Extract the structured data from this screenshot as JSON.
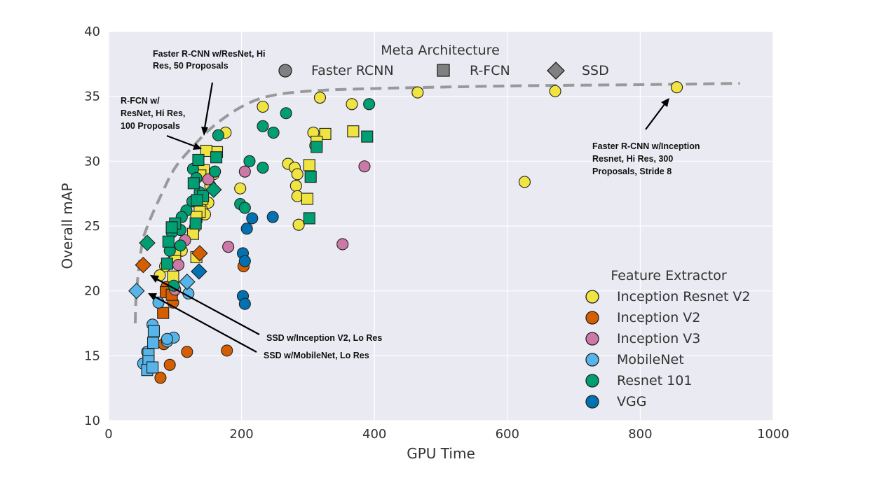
{
  "chart_data": {
    "type": "scatter",
    "xlabel": "GPU Time",
    "ylabel": "Overall mAP",
    "xlim": [
      0,
      1000
    ],
    "ylim": [
      10,
      40
    ],
    "x_ticks": [
      "0",
      "200",
      "400",
      "600",
      "800",
      "1000"
    ],
    "y_ticks": [
      "10",
      "15",
      "20",
      "25",
      "30",
      "35",
      "40"
    ],
    "grid": true,
    "meta_legend": {
      "title": "Meta Architecture",
      "placement": "top-center",
      "items": [
        {
          "label": "Faster RCNN",
          "marker": "circle"
        },
        {
          "label": "R-FCN",
          "marker": "square"
        },
        {
          "label": "SSD",
          "marker": "diamond"
        }
      ]
    },
    "feature_legend": {
      "title": "Feature Extractor",
      "placement": "right",
      "items": [
        {
          "label": "Inception Resnet V2",
          "color": "#f0e442"
        },
        {
          "label": "Inception V2",
          "color": "#d55e00"
        },
        {
          "label": "Inception V3",
          "color": "#cc79a7"
        },
        {
          "label": "MobileNet",
          "color": "#56b4e9"
        },
        {
          "label": "Resnet 101",
          "color": "#009e73"
        },
        {
          "label": "VGG",
          "color": "#0072b2"
        }
      ]
    },
    "frontier": [
      [
        40,
        17.5
      ],
      [
        42,
        20
      ],
      [
        50,
        23.5
      ],
      [
        60,
        25.2
      ],
      [
        80,
        27.5
      ],
      [
        100,
        29.5
      ],
      [
        130,
        31.3
      ],
      [
        160,
        32.8
      ],
      [
        200,
        34.2
      ],
      [
        240,
        35
      ],
      [
        300,
        35.4
      ],
      [
        400,
        35.6
      ],
      [
        600,
        35.8
      ],
      [
        800,
        35.9
      ],
      [
        950,
        36
      ]
    ],
    "annotations": [
      {
        "lines": [
          "Faster R-CNN w/ResNet, Hi",
          "Res, 50 Proposals"
        ],
        "target": [
          143,
          31.3
        ]
      },
      {
        "lines": [
          "R-FCN w/",
          "ResNet, Hi Res,",
          "100 Proposals"
        ],
        "target": [
          143,
          30.8
        ]
      },
      {
        "lines": [
          "SSD w/Inception V2, Lo Res"
        ],
        "target": [
          60,
          21.2
        ]
      },
      {
        "lines": [
          "SSD w/MobileNet, Lo Res"
        ],
        "target": [
          60,
          20.2
        ]
      },
      {
        "lines": [
          "Faster R-CNN w/Inception",
          "Resnet, Hi Res, 300",
          "Proposals, Stride 8"
        ],
        "target": [
          843,
          35.4
        ]
      }
    ],
    "series": [
      {
        "name": "Inception Resnet V2",
        "color": "#f0e442",
        "points": [
          {
            "x": 855,
            "y": 35.7,
            "m": "circle"
          },
          {
            "x": 672,
            "y": 35.4,
            "m": "circle"
          },
          {
            "x": 465,
            "y": 35.3,
            "m": "circle"
          },
          {
            "x": 626,
            "y": 28.4,
            "m": "circle"
          },
          {
            "x": 366,
            "y": 34.4,
            "m": "circle"
          },
          {
            "x": 318,
            "y": 34.9,
            "m": "circle"
          },
          {
            "x": 232,
            "y": 34.2,
            "m": "circle"
          },
          {
            "x": 176,
            "y": 32.2,
            "m": "circle"
          },
          {
            "x": 308,
            "y": 32.2,
            "m": "circle"
          },
          {
            "x": 311,
            "y": 31.2,
            "m": "circle"
          },
          {
            "x": 270,
            "y": 29.8,
            "m": "circle"
          },
          {
            "x": 280,
            "y": 29.5,
            "m": "circle"
          },
          {
            "x": 284,
            "y": 29.0,
            "m": "circle"
          },
          {
            "x": 282,
            "y": 28.1,
            "m": "circle"
          },
          {
            "x": 284,
            "y": 27.3,
            "m": "circle"
          },
          {
            "x": 198,
            "y": 27.9,
            "m": "circle"
          },
          {
            "x": 286,
            "y": 25.1,
            "m": "circle"
          },
          {
            "x": 158,
            "y": 29.0,
            "m": "circle"
          },
          {
            "x": 153,
            "y": 28.1,
            "m": "circle"
          },
          {
            "x": 150,
            "y": 26.8,
            "m": "circle"
          },
          {
            "x": 140,
            "y": 26.3,
            "m": "circle"
          },
          {
            "x": 145,
            "y": 25.9,
            "m": "circle"
          },
          {
            "x": 130,
            "y": 24.9,
            "m": "circle"
          },
          {
            "x": 110,
            "y": 23.1,
            "m": "circle"
          },
          {
            "x": 96,
            "y": 22.3,
            "m": "circle"
          },
          {
            "x": 85,
            "y": 21.9,
            "m": "circle"
          },
          {
            "x": 77,
            "y": 21.2,
            "m": "circle"
          },
          {
            "x": 368,
            "y": 32.3,
            "m": "square"
          },
          {
            "x": 326,
            "y": 32.1,
            "m": "square"
          },
          {
            "x": 313,
            "y": 31.5,
            "m": "square"
          },
          {
            "x": 302,
            "y": 29.7,
            "m": "square"
          },
          {
            "x": 299,
            "y": 27.1,
            "m": "square"
          },
          {
            "x": 163,
            "y": 30.7,
            "m": "square"
          },
          {
            "x": 147,
            "y": 30.8,
            "m": "square"
          },
          {
            "x": 143,
            "y": 29.3,
            "m": "square"
          },
          {
            "x": 138,
            "y": 28.9,
            "m": "square"
          },
          {
            "x": 141,
            "y": 27.1,
            "m": "square"
          },
          {
            "x": 137,
            "y": 26.1,
            "m": "square"
          },
          {
            "x": 132,
            "y": 25.7,
            "m": "square"
          },
          {
            "x": 127,
            "y": 24.4,
            "m": "square"
          },
          {
            "x": 100,
            "y": 22.8,
            "m": "square"
          },
          {
            "x": 100,
            "y": 22.3,
            "m": "square"
          },
          {
            "x": 97,
            "y": 21.1,
            "m": "square"
          },
          {
            "x": 132,
            "y": 22.6,
            "m": "square"
          }
        ]
      },
      {
        "name": "Inception V2",
        "color": "#d55e00",
        "points": [
          {
            "x": 203,
            "y": 21.9,
            "m": "circle"
          },
          {
            "x": 178,
            "y": 15.4,
            "m": "circle"
          },
          {
            "x": 118,
            "y": 15.3,
            "m": "circle"
          },
          {
            "x": 97,
            "y": 19.1,
            "m": "circle"
          },
          {
            "x": 92,
            "y": 14.3,
            "m": "circle"
          },
          {
            "x": 78,
            "y": 13.3,
            "m": "circle"
          },
          {
            "x": 83,
            "y": 15.9,
            "m": "circle"
          },
          {
            "x": 96,
            "y": 19.8,
            "m": "circle"
          },
          {
            "x": 87,
            "y": 20.3,
            "m": "circle"
          },
          {
            "x": 82,
            "y": 18.3,
            "m": "square"
          },
          {
            "x": 86,
            "y": 19.9,
            "m": "square"
          },
          {
            "x": 95,
            "y": 19.7,
            "m": "square"
          },
          {
            "x": 52,
            "y": 22.0,
            "m": "diamond"
          },
          {
            "x": 137,
            "y": 22.9,
            "m": "diamond"
          }
        ]
      },
      {
        "name": "Inception V3",
        "color": "#cc79a7",
        "points": [
          {
            "x": 385,
            "y": 29.6,
            "m": "circle"
          },
          {
            "x": 352,
            "y": 23.6,
            "m": "circle"
          },
          {
            "x": 180,
            "y": 23.4,
            "m": "circle"
          },
          {
            "x": 205,
            "y": 29.2,
            "m": "circle"
          },
          {
            "x": 150,
            "y": 28.6,
            "m": "circle"
          },
          {
            "x": 115,
            "y": 23.9,
            "m": "circle"
          },
          {
            "x": 105,
            "y": 22.0,
            "m": "circle"
          },
          {
            "x": 100,
            "y": 20.1,
            "m": "circle"
          }
        ]
      },
      {
        "name": "MobileNet",
        "color": "#56b4e9",
        "points": [
          {
            "x": 75,
            "y": 19.1,
            "m": "circle"
          },
          {
            "x": 88,
            "y": 16.1,
            "m": "circle"
          },
          {
            "x": 98,
            "y": 16.4,
            "m": "circle"
          },
          {
            "x": 66,
            "y": 17.4,
            "m": "circle"
          },
          {
            "x": 58,
            "y": 15.3,
            "m": "circle"
          },
          {
            "x": 52,
            "y": 14.4,
            "m": "circle"
          },
          {
            "x": 60,
            "y": 14.9,
            "m": "circle"
          },
          {
            "x": 120,
            "y": 19.8,
            "m": "circle"
          },
          {
            "x": 88,
            "y": 16.3,
            "m": "circle"
          },
          {
            "x": 68,
            "y": 16.9,
            "m": "square"
          },
          {
            "x": 67,
            "y": 16.0,
            "m": "square"
          },
          {
            "x": 60,
            "y": 15.1,
            "m": "square"
          },
          {
            "x": 60,
            "y": 14.6,
            "m": "square"
          },
          {
            "x": 58,
            "y": 13.9,
            "m": "square"
          },
          {
            "x": 66,
            "y": 14.1,
            "m": "square"
          },
          {
            "x": 42,
            "y": 20.0,
            "m": "diamond"
          },
          {
            "x": 118,
            "y": 20.7,
            "m": "diamond"
          }
        ]
      },
      {
        "name": "Resnet 101",
        "color": "#009e73",
        "points": [
          {
            "x": 392,
            "y": 34.4,
            "m": "circle"
          },
          {
            "x": 267,
            "y": 33.7,
            "m": "circle"
          },
          {
            "x": 232,
            "y": 32.7,
            "m": "circle"
          },
          {
            "x": 248,
            "y": 32.2,
            "m": "circle"
          },
          {
            "x": 165,
            "y": 32.0,
            "m": "circle"
          },
          {
            "x": 212,
            "y": 30.0,
            "m": "circle"
          },
          {
            "x": 232,
            "y": 29.5,
            "m": "circle"
          },
          {
            "x": 198,
            "y": 26.7,
            "m": "circle"
          },
          {
            "x": 205,
            "y": 26.4,
            "m": "circle"
          },
          {
            "x": 160,
            "y": 29.2,
            "m": "circle"
          },
          {
            "x": 127,
            "y": 29.4,
            "m": "circle"
          },
          {
            "x": 132,
            "y": 28.7,
            "m": "circle"
          },
          {
            "x": 137,
            "y": 27.6,
            "m": "circle"
          },
          {
            "x": 126,
            "y": 26.9,
            "m": "circle"
          },
          {
            "x": 117,
            "y": 26.2,
            "m": "circle"
          },
          {
            "x": 110,
            "y": 25.7,
            "m": "circle"
          },
          {
            "x": 108,
            "y": 24.7,
            "m": "circle"
          },
          {
            "x": 95,
            "y": 24.5,
            "m": "circle"
          },
          {
            "x": 92,
            "y": 23.1,
            "m": "circle"
          },
          {
            "x": 108,
            "y": 23.5,
            "m": "circle"
          },
          {
            "x": 98,
            "y": 20.4,
            "m": "circle"
          },
          {
            "x": 389,
            "y": 31.9,
            "m": "square"
          },
          {
            "x": 313,
            "y": 31.1,
            "m": "square"
          },
          {
            "x": 304,
            "y": 28.8,
            "m": "square"
          },
          {
            "x": 302,
            "y": 25.6,
            "m": "square"
          },
          {
            "x": 162,
            "y": 30.3,
            "m": "square"
          },
          {
            "x": 135,
            "y": 30.1,
            "m": "square"
          },
          {
            "x": 128,
            "y": 28.3,
            "m": "square"
          },
          {
            "x": 142,
            "y": 27.3,
            "m": "square"
          },
          {
            "x": 133,
            "y": 27.0,
            "m": "square"
          },
          {
            "x": 131,
            "y": 25.2,
            "m": "square"
          },
          {
            "x": 100,
            "y": 25.2,
            "m": "square"
          },
          {
            "x": 95,
            "y": 24.9,
            "m": "square"
          },
          {
            "x": 90,
            "y": 23.8,
            "m": "square"
          },
          {
            "x": 88,
            "y": 22.1,
            "m": "square"
          },
          {
            "x": 58,
            "y": 23.7,
            "m": "diamond"
          },
          {
            "x": 158,
            "y": 27.8,
            "m": "diamond"
          }
        ]
      },
      {
        "name": "VGG",
        "color": "#0072b2",
        "points": [
          {
            "x": 247,
            "y": 25.7,
            "m": "circle"
          },
          {
            "x": 216,
            "y": 25.6,
            "m": "circle"
          },
          {
            "x": 208,
            "y": 24.8,
            "m": "circle"
          },
          {
            "x": 202,
            "y": 22.9,
            "m": "circle"
          },
          {
            "x": 205,
            "y": 22.3,
            "m": "circle"
          },
          {
            "x": 202,
            "y": 19.6,
            "m": "circle"
          },
          {
            "x": 205,
            "y": 19.0,
            "m": "circle"
          },
          {
            "x": 136,
            "y": 21.5,
            "m": "diamond"
          }
        ]
      }
    ]
  }
}
